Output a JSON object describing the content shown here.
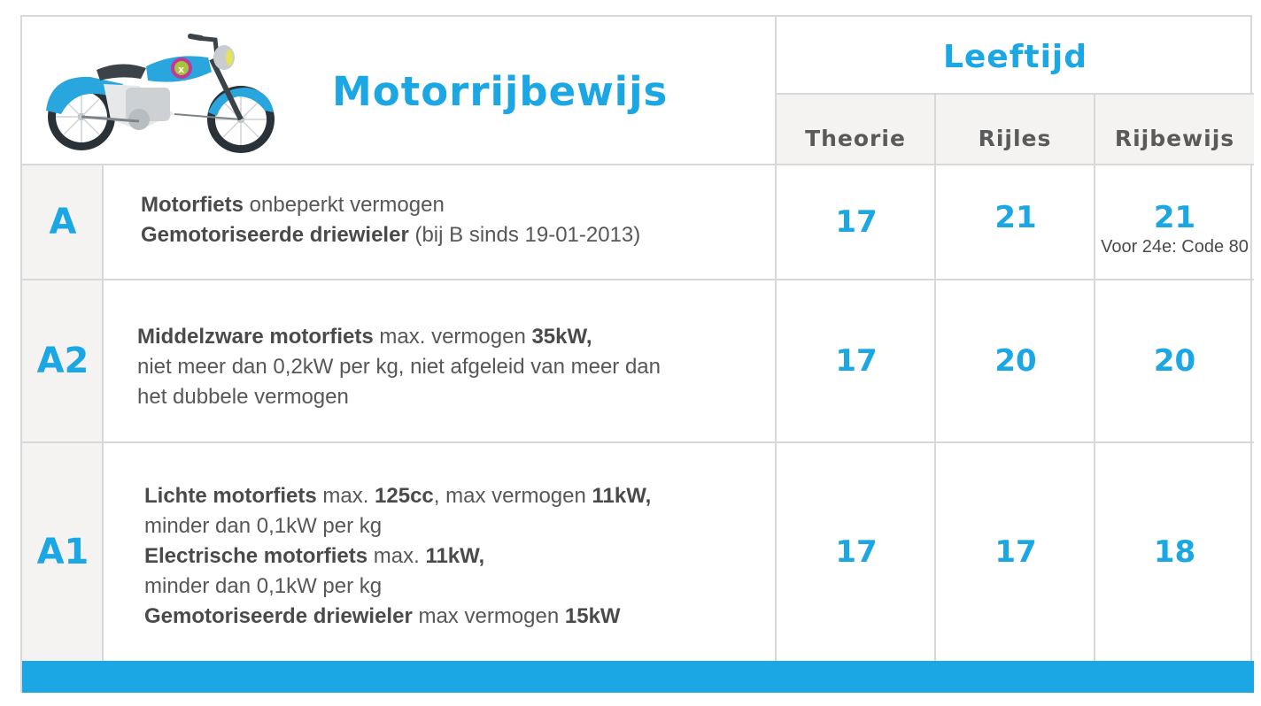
{
  "header": {
    "title": "Motorrijbewijs",
    "age_group_label": "Leeftijd",
    "columns": [
      "Theorie",
      "Rijles",
      "Rijbewijs"
    ]
  },
  "icons": {
    "motorcycle": "motorcycle-icon"
  },
  "colors": {
    "accent": "#1ba7e3",
    "text": "#4a4a4a",
    "header_bg": "#f4f3f2",
    "border": "#d8d8d8"
  },
  "rows": [
    {
      "category": "A",
      "lines": [
        [
          {
            "b": "Motorfiets"
          },
          {
            "t": " onbeperkt vermogen"
          }
        ],
        [
          {
            "b": "Gemotoriseerde driewieler"
          },
          {
            "t": " (bij B sinds 19-01-2013)"
          }
        ]
      ],
      "theorie": "17",
      "rijles": "21",
      "rijbewijs": "21",
      "rijbewijs_note": "Voor 24e: Code 80"
    },
    {
      "category": "A2",
      "lines": [
        [
          {
            "b": "Middelzware motorfiets"
          },
          {
            "t": " max. vermogen "
          },
          {
            "b": "35kW,"
          }
        ],
        [
          {
            "t": "niet meer dan 0,2kW per kg, niet afgeleid van meer dan"
          }
        ],
        [
          {
            "t": "het dubbele vermogen"
          }
        ]
      ],
      "theorie": "17",
      "rijles": "20",
      "rijbewijs": "20"
    },
    {
      "category": "A1",
      "lines": [
        [
          {
            "b": "Lichte motorfiets"
          },
          {
            "t": " max. "
          },
          {
            "b": "125cc"
          },
          {
            "t": ", max vermogen "
          },
          {
            "b": "11kW,"
          }
        ],
        [
          {
            "t": "minder dan 0,1kW per kg"
          }
        ],
        [
          {
            "b": "Electrische motorfiets"
          },
          {
            "t": " max. "
          },
          {
            "b": "11kW,"
          }
        ],
        [
          {
            "t": "minder dan 0,1kW per kg"
          }
        ],
        [
          {
            "b": "Gemotoriseerde driewieler"
          },
          {
            "t": " max vermogen "
          },
          {
            "b": "15kW"
          }
        ]
      ],
      "theorie": "17",
      "rijles": "17",
      "rijbewijs": "18"
    }
  ]
}
